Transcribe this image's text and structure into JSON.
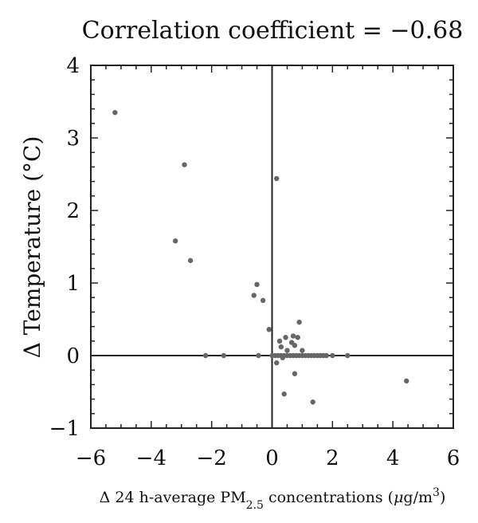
{
  "chart_data": {
    "type": "scatter",
    "title": "Correlation coefficient = −0.68",
    "xlabel": {
      "pre": "Δ 24 h-average PM",
      "sub": "2.5",
      "mid": " concentrations (",
      "mu": "μ",
      "unit": "g/m",
      "sup": "3",
      "post": ")"
    },
    "ylabel": "Δ Temperature (°C)",
    "xlim": [
      -6,
      6
    ],
    "ylim": [
      -1,
      4
    ],
    "xticks": [
      -6,
      -4,
      -2,
      0,
      2,
      4,
      6
    ],
    "xtick_labels": [
      "−6",
      "−4",
      "−2",
      "0",
      "2",
      "4",
      "6"
    ],
    "yticks": [
      -1,
      0,
      1,
      2,
      3,
      4
    ],
    "ytick_labels": [
      "−1",
      "0",
      "1",
      "2",
      "3",
      "4"
    ],
    "zero_lines": true,
    "grid": false,
    "point_color": "#666666",
    "points": [
      [
        -5.2,
        3.35
      ],
      [
        -2.9,
        2.63
      ],
      [
        0.15,
        2.44
      ],
      [
        -3.2,
        1.58
      ],
      [
        -2.7,
        1.31
      ],
      [
        -0.5,
        0.98
      ],
      [
        -0.6,
        0.83
      ],
      [
        -0.3,
        0.76
      ],
      [
        -0.1,
        0.36
      ],
      [
        0.9,
        0.46
      ],
      [
        0.45,
        0.25
      ],
      [
        0.7,
        0.27
      ],
      [
        0.85,
        0.25
      ],
      [
        0.25,
        0.2
      ],
      [
        0.65,
        0.18
      ],
      [
        0.75,
        0.14
      ],
      [
        0.3,
        0.12
      ],
      [
        0.5,
        0.07
      ],
      [
        1.0,
        0.07
      ],
      [
        -2.2,
        0.0
      ],
      [
        -1.6,
        0.0
      ],
      [
        -0.45,
        0.0
      ],
      [
        0.0,
        0.0
      ],
      [
        0.1,
        0.0
      ],
      [
        0.2,
        0.0
      ],
      [
        0.3,
        0.0
      ],
      [
        0.4,
        0.0
      ],
      [
        0.5,
        0.0
      ],
      [
        0.6,
        0.0
      ],
      [
        0.7,
        0.0
      ],
      [
        0.8,
        0.0
      ],
      [
        0.9,
        0.0
      ],
      [
        1.0,
        0.0
      ],
      [
        1.1,
        0.0
      ],
      [
        1.2,
        0.0
      ],
      [
        1.3,
        0.0
      ],
      [
        1.4,
        0.0
      ],
      [
        1.5,
        0.0
      ],
      [
        1.6,
        0.0
      ],
      [
        1.7,
        0.0
      ],
      [
        1.8,
        0.0
      ],
      [
        2.0,
        0.0
      ],
      [
        2.5,
        0.0
      ],
      [
        0.35,
        -0.03
      ],
      [
        0.15,
        -0.1
      ],
      [
        0.75,
        -0.25
      ],
      [
        0.4,
        -0.53
      ],
      [
        1.35,
        -0.64
      ],
      [
        4.45,
        -0.35
      ]
    ]
  }
}
